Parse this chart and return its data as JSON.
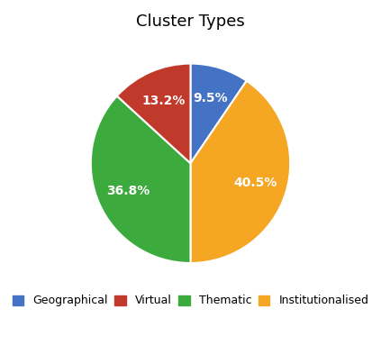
{
  "title": "Cluster Types",
  "slices": [
    {
      "label": "Geographical",
      "value": 9.5,
      "color": "#4472C4"
    },
    {
      "label": "Institutionalised",
      "value": 40.5,
      "color": "#F5A623"
    },
    {
      "label": "Thematic",
      "value": 36.8,
      "color": "#3DAA3D"
    },
    {
      "label": "Virtual",
      "value": 13.2,
      "color": "#C0392B"
    }
  ],
  "legend_order": [
    {
      "label": "Geographical",
      "color": "#4472C4"
    },
    {
      "label": "Virtual",
      "color": "#C0392B"
    },
    {
      "label": "Thematic",
      "color": "#3DAA3D"
    },
    {
      "label": "Institutionalised",
      "color": "#F5A623"
    }
  ],
  "startangle": 90,
  "counterclock": false,
  "background_color": "#ffffff",
  "title_fontsize": 13,
  "legend_fontsize": 9,
  "autopct_fontsize": 10,
  "pctdistance": 0.68
}
